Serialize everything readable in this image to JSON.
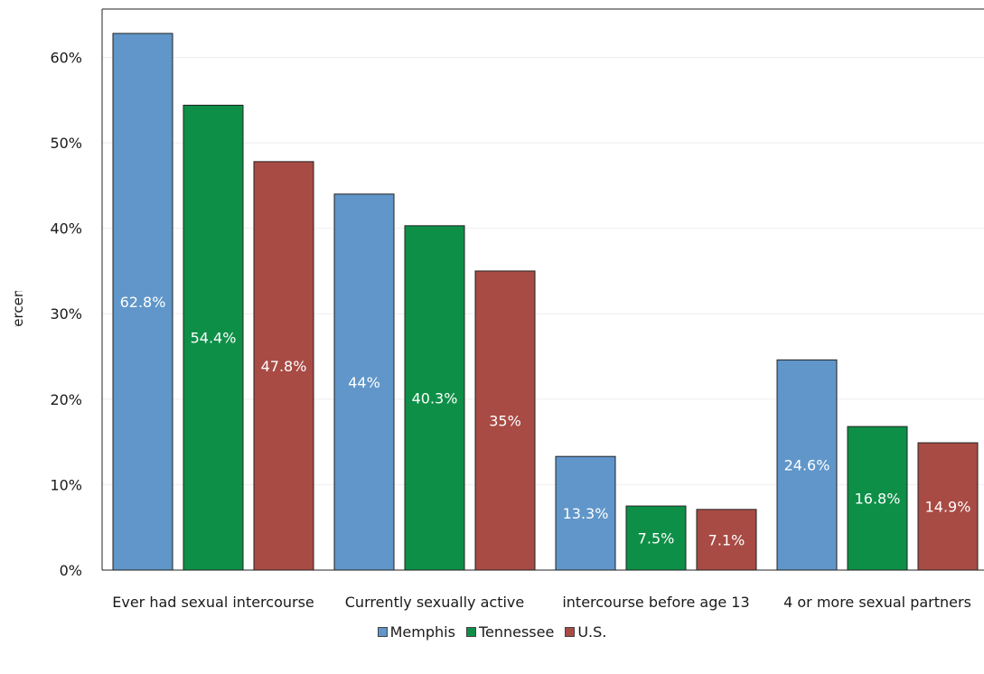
{
  "chart_data": {
    "type": "bar",
    "title": "",
    "xlabel": "",
    "ylabel": "Percent",
    "ylim": [
      0,
      65
    ],
    "yticks": [
      0,
      10,
      20,
      30,
      40,
      50,
      60
    ],
    "ytick_labels": [
      "0%",
      "10%",
      "20%",
      "30%",
      "40%",
      "50%",
      "60%"
    ],
    "grid": true,
    "legend_position": "bottom",
    "categories": [
      "Ever had sexual intercourse",
      "Currently sexually active",
      "intercourse before age 13",
      "4 or more sexual partners"
    ],
    "series": [
      {
        "name": "Memphis",
        "color": "#6096c9",
        "values": [
          62.8,
          44,
          13.3,
          24.6
        ],
        "labels": [
          "62.8%",
          "44%",
          "13.3%",
          "24.6%"
        ]
      },
      {
        "name": "Tennessee",
        "color": "#0e8f47",
        "values": [
          54.4,
          40.3,
          7.5,
          16.8
        ],
        "labels": [
          "54.4%",
          "40.3%",
          "7.5%",
          "16.8%"
        ]
      },
      {
        "name": "U.S.",
        "color": "#a84b44",
        "values": [
          47.8,
          35,
          7.1,
          14.9
        ],
        "labels": [
          "47.8%",
          "35%",
          "7.1%",
          "14.9%"
        ]
      }
    ]
  }
}
